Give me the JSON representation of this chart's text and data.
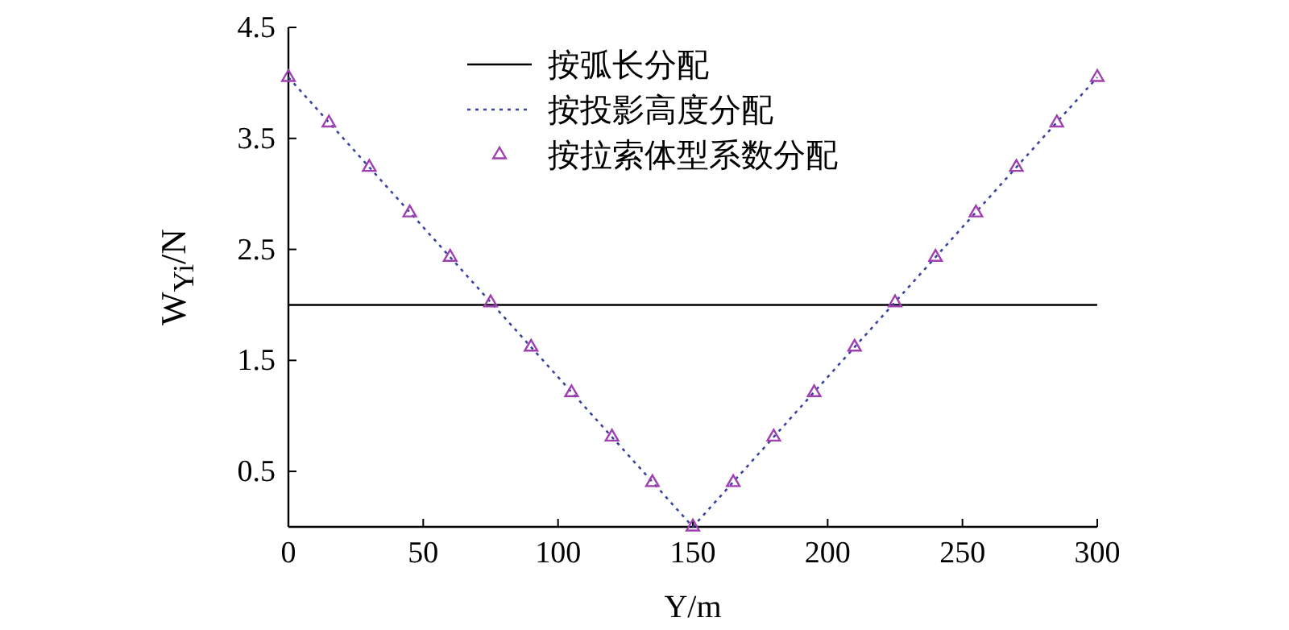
{
  "chart_data": {
    "type": "line",
    "xlabel": "Y/m",
    "ylabel": "W$_{Yi}$/N",
    "xlim": [
      0,
      300
    ],
    "xticks": [
      0,
      50,
      100,
      150,
      200,
      250,
      300
    ],
    "ylim": [
      0,
      4.5
    ],
    "yticks": [
      0.5,
      1.5,
      2.5,
      3.5,
      4.5
    ],
    "grid": false,
    "legend": "top right",
    "series": [
      {
        "name": "按弧长分配",
        "type": "line",
        "color": "#000000",
        "line_style": "solid",
        "marker": "none",
        "x": [
          0,
          300
        ],
        "values": [
          2.0,
          2.0
        ]
      },
      {
        "name": "按投影高度分配",
        "type": "line",
        "color": "#3a42a0",
        "line_style": "dotted",
        "marker": "none",
        "x": [
          0,
          150,
          300
        ],
        "values": [
          4.05,
          0,
          4.05
        ]
      },
      {
        "name": "按拉索体型系数分配",
        "type": "scatter",
        "color": "#a040b0",
        "marker": "triangle",
        "x": [
          0,
          15,
          30,
          45,
          60,
          75,
          90,
          105,
          120,
          135,
          150,
          165,
          180,
          195,
          210,
          225,
          240,
          255,
          270,
          285,
          300
        ],
        "values": [
          4.05,
          3.64,
          3.24,
          2.83,
          2.43,
          2.02,
          1.62,
          1.21,
          0.81,
          0.4,
          0,
          0.4,
          0.81,
          1.21,
          1.62,
          2.02,
          2.43,
          2.83,
          3.24,
          3.64,
          4.05
        ]
      }
    ]
  }
}
